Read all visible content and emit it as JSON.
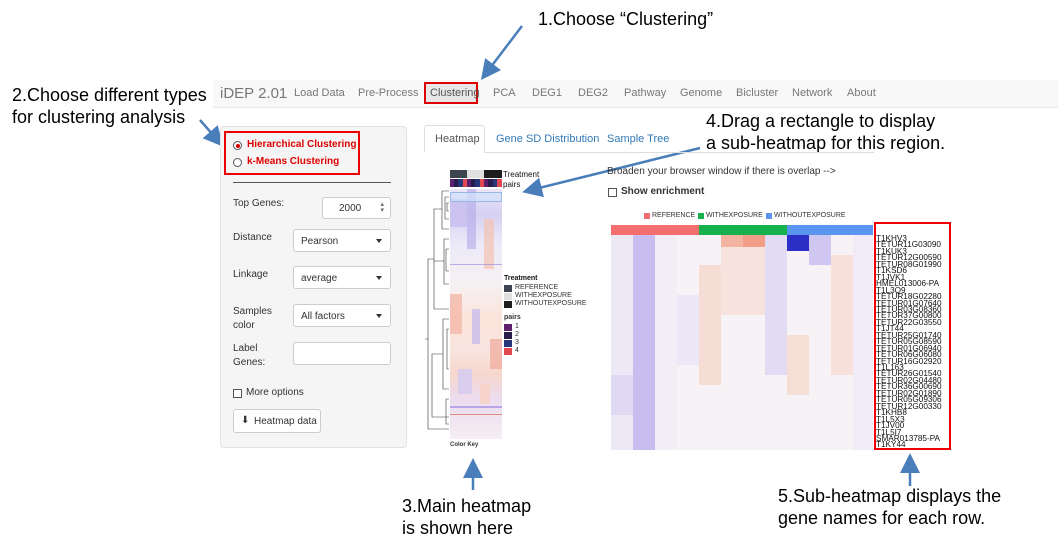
{
  "annotations": {
    "step1": "1.Choose “Clustering”",
    "step2_line1": "2.Choose different types",
    "step2_line2": "for clustering analysis",
    "step3_line1": "3.Main heatmap",
    "step3_line2": "is shown here",
    "step4_line1": "4.Drag a rectangle to display",
    "step4_line2": "a sub-heatmap for this region.",
    "step5_line1": "5.Sub-heatmap displays the",
    "step5_line2": "gene names for each row."
  },
  "navbar": {
    "brand": "iDEP 2.01",
    "items": [
      "Load Data",
      "Pre-Process",
      "Clustering",
      "PCA",
      "DEG1",
      "DEG2",
      "Pathway",
      "Genome",
      "Bicluster",
      "Network",
      "About"
    ],
    "active": "Clustering"
  },
  "sidebar": {
    "radio_hierarchical": "Hierarchical Clustering",
    "radio_kmeans": "k-Means Clustering",
    "selected_method": "Hierarchical Clustering",
    "top_genes_label": "Top Genes:",
    "top_genes_value": "2000",
    "distance_label": "Distance",
    "distance_value": "Pearson",
    "linkage_label": "Linkage",
    "linkage_value": "average",
    "samples_color_label_1": "Samples",
    "samples_color_label_2": "color",
    "samples_color_value": "All factors",
    "label_genes_label_1": "Label",
    "label_genes_label_2": "Genes:",
    "label_genes_value": "",
    "more_options": "More options",
    "heatmap_data_button": "Heatmap data"
  },
  "tabs": {
    "items": [
      "Heatmap",
      "Gene SD Distribution",
      "Sample Tree"
    ],
    "active": "Heatmap"
  },
  "main_heatmap": {
    "treatment_label": "Treatment",
    "pairs_label": "pairs",
    "legend_title_treatment": "Treatment",
    "legend_treatment": [
      {
        "label": "REFERENCE",
        "color": "#3d4650"
      },
      {
        "label": "WITHEXPOSURE",
        "color": "#e0e0e0"
      },
      {
        "label": "WITHOUTEXPOSURE",
        "color": "#1e1e1e"
      }
    ],
    "legend_title_pairs": "pairs",
    "legend_pairs": [
      {
        "label": "1",
        "color": "#5b1f6e"
      },
      {
        "label": "2",
        "color": "#2a1c4a"
      },
      {
        "label": "3",
        "color": "#27357a"
      },
      {
        "label": "4",
        "color": "#e24850"
      }
    ],
    "color_key_label": "Color Key"
  },
  "sub_heatmap": {
    "overlap_note": "Broaden your browser window if there is overlap -->",
    "show_enrichment": "Show enrichment",
    "legend": [
      {
        "label": "REFERENCE",
        "color": "#f36e6e"
      },
      {
        "label": "WITHEXPOSURE",
        "color": "#16b04c"
      },
      {
        "label": "WITHOUTEXPOSURE",
        "color": "#5a96f0"
      }
    ],
    "gene_names": [
      "T1KHV3",
      "TETUR11G03090",
      "T1KUK3",
      "TETUR12G00590",
      "TETUR08G01990",
      "T1KSD6",
      "T1JVK1",
      "HMEL013006-PA",
      "T1L3Q9",
      "TETUR18G02280",
      "TETUR01G07640",
      "TETUR03G08360",
      "TETUR37G00800",
      "TETUR22G03550",
      "T1JT44",
      "TETUR25G01740",
      "TETUR05G08590",
      "TETUR01G06940",
      "TETUR06G06080",
      "TETUR16G02920",
      "T1L163",
      "TETUR26G01540",
      "TETUR02G04480",
      "TETUR36G00690",
      "TETUR02G01890",
      "TETUR05G09306",
      "TETUR12G00330",
      "T1KHB8",
      "T1L5X3",
      "T1JV00",
      "T1L5I7",
      "SMAR013785-PA",
      "T1KY44"
    ]
  },
  "colors": {
    "highlight": "#e00000",
    "arrow": "#4a7ebb",
    "link": "#337ab7"
  }
}
